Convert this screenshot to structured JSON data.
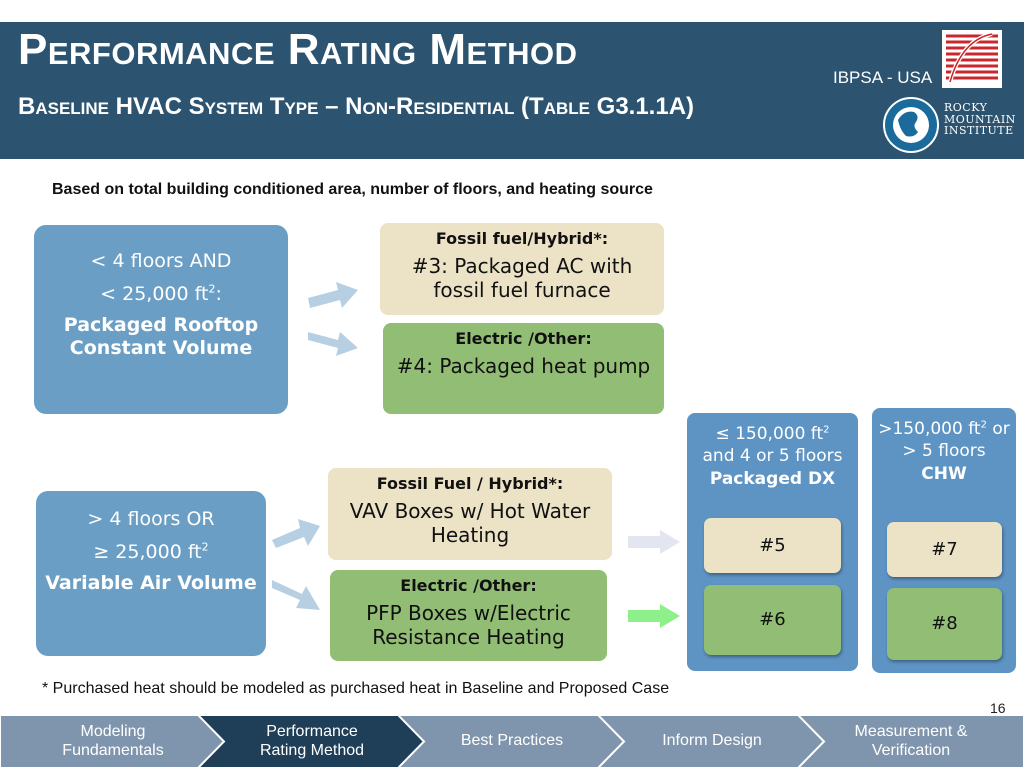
{
  "header": {
    "title": "Performance Rating Method",
    "subtitle": "Baseline HVAC System Type – Non-Residential (Table G3.1.1A)",
    "org_label": "IBPSA - USA",
    "rmi_logo": [
      "ROCKY",
      "MOUNTAIN",
      "INSTITUTE"
    ]
  },
  "intro": "Based on total building conditioned area, number of floors, and heating source",
  "small_buildings": {
    "line1": "< 4 floors AND",
    "line2_prefix": "< 25,000 ft",
    "line2_sup": "2",
    "line2_suffix": ":",
    "system": "Packaged Rooftop Constant Volume",
    "fossil_heading": "Fossil fuel/Hybrid*:",
    "fossil_body": "#3: Packaged AC with fossil fuel furnace",
    "electric_heading": "Electric /Other:",
    "electric_body": "#4: Packaged heat pump"
  },
  "large_buildings": {
    "line1": "> 4 floors OR",
    "line2_prefix": "≥ 25,000 ft",
    "line2_sup": "2",
    "system": "Variable Air Volume",
    "fossil_heading": "Fossil Fuel / Hybrid*:",
    "fossil_body": "VAV Boxes w/ Hot Water Heating",
    "electric_heading": "Electric /Other:",
    "electric_body": "PFP Boxes w/Electric Resistance Heating"
  },
  "column_dx": {
    "text_a": "≤ 150,000 ft",
    "sup": "2",
    "text_b": "and 4 or 5 floors",
    "type": "Packaged DX",
    "top_num": "#5",
    "bottom_num": "#6"
  },
  "column_chw": {
    "text_a": ">150,000 ft",
    "sup": "2",
    "text_b": "or > 5 floors",
    "type": "CHW",
    "top_num": "#7",
    "bottom_num": "#8"
  },
  "footnote": "* Purchased heat should be modeled as purchased heat in Baseline and Proposed Case",
  "page_number": "16",
  "nav": [
    {
      "label_a": "Modeling",
      "label_b": "Fundamentals"
    },
    {
      "label_a": "Performance",
      "label_b": "Rating Method"
    },
    {
      "label_a": "Best Practices",
      "label_b": ""
    },
    {
      "label_a": "Inform Design",
      "label_b": ""
    },
    {
      "label_a": "Measurement &",
      "label_b": "Verification"
    }
  ],
  "colors": {
    "header": "#2c5470",
    "condition_box": "#6b9ec4",
    "fossil_box": "#ece2c6",
    "electric_box": "#92bd74",
    "nav_default": "#7f95ad",
    "nav_active": "#1f3f58"
  }
}
